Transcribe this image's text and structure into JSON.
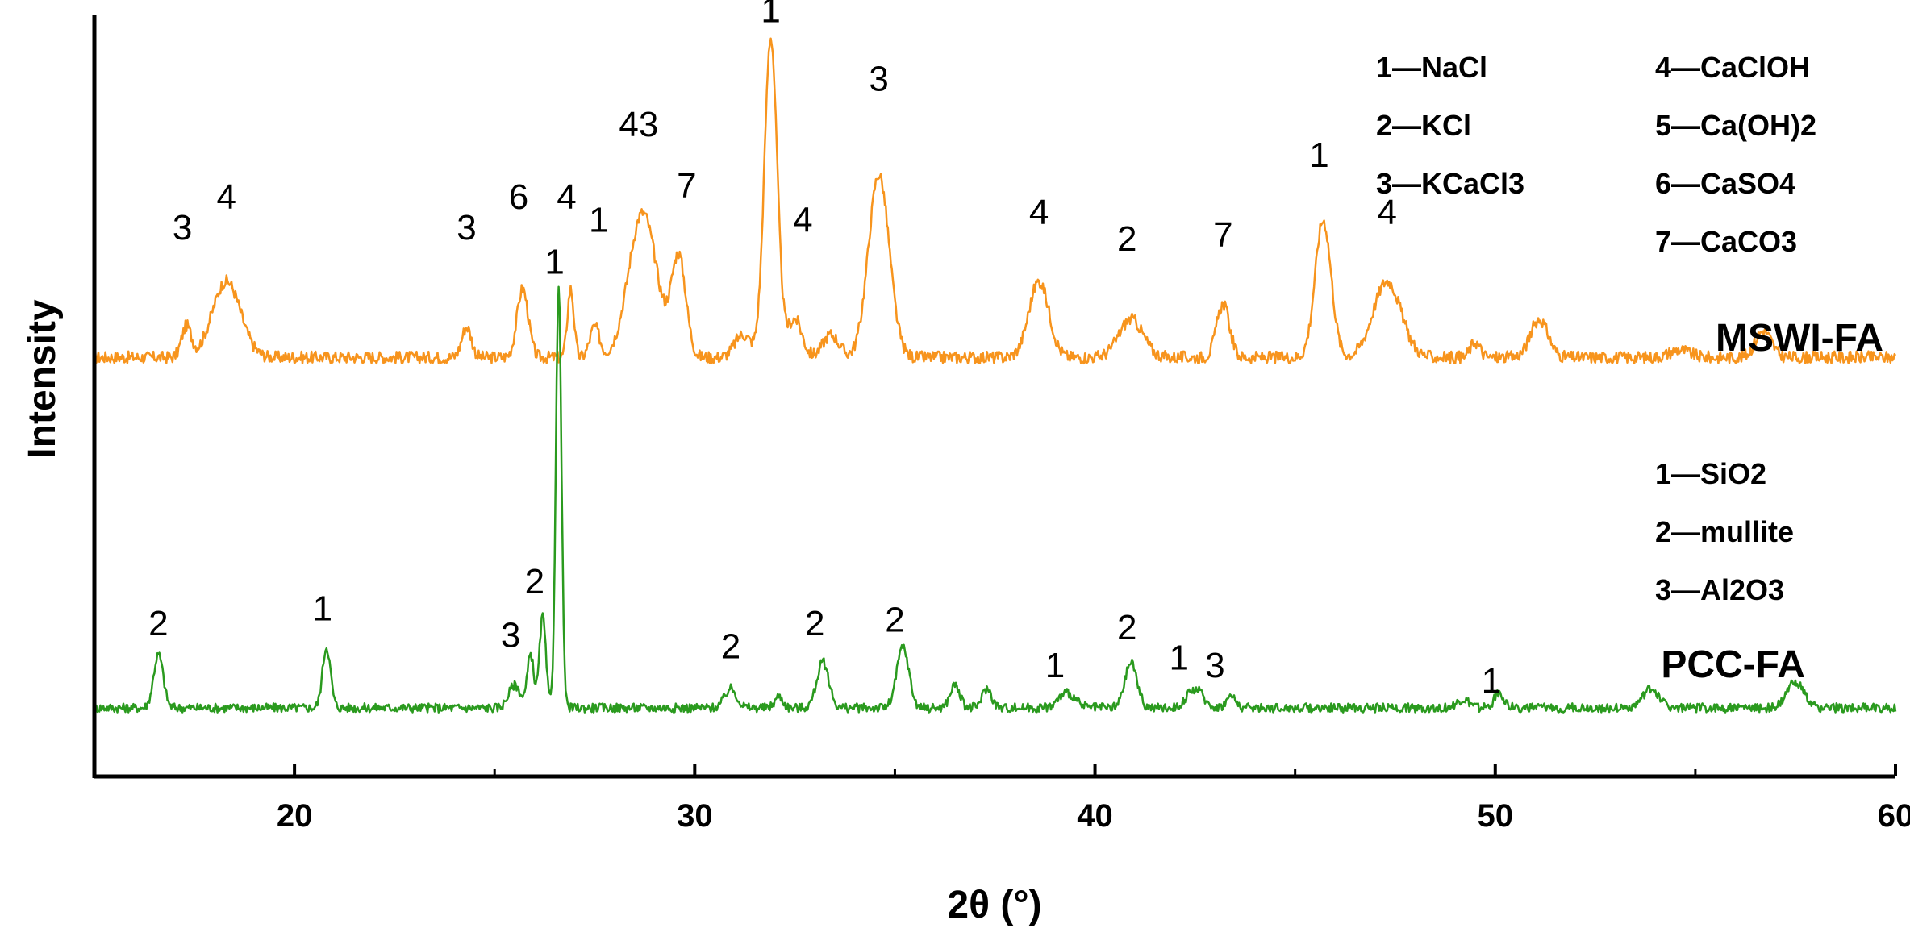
{
  "chart_data": {
    "type": "line",
    "xlabel": "2θ (°)",
    "ylabel": "Intensity",
    "xlim": [
      15,
      60
    ],
    "ylim": [
      0,
      100
    ],
    "x_ticks": [
      20,
      30,
      40,
      50,
      60
    ],
    "x_tick_labels": [
      "20",
      "30",
      "40",
      "50",
      "60"
    ],
    "grid": false,
    "series": [
      {
        "name": "MSWI-FA",
        "color": "#f7941d",
        "baseline": 55,
        "noise": 0.8,
        "peaks": [
          {
            "x": 17.3,
            "h": 4,
            "w": 0.12
          },
          {
            "x": 18.3,
            "h": 10,
            "w": 0.35
          },
          {
            "x": 24.3,
            "h": 4,
            "w": 0.12
          },
          {
            "x": 25.7,
            "h": 9,
            "w": 0.14
          },
          {
            "x": 26.9,
            "h": 9,
            "w": 0.08
          },
          {
            "x": 27.5,
            "h": 4,
            "w": 0.12
          },
          {
            "x": 28.7,
            "h": 19,
            "w": 0.35
          },
          {
            "x": 29.6,
            "h": 13,
            "w": 0.18
          },
          {
            "x": 31.2,
            "h": 3,
            "w": 0.2
          },
          {
            "x": 31.9,
            "h": 42,
            "w": 0.16
          },
          {
            "x": 32.5,
            "h": 5,
            "w": 0.18
          },
          {
            "x": 33.4,
            "h": 3,
            "w": 0.2
          },
          {
            "x": 34.6,
            "h": 24,
            "w": 0.26
          },
          {
            "x": 38.6,
            "h": 10,
            "w": 0.25
          },
          {
            "x": 40.9,
            "h": 5,
            "w": 0.3
          },
          {
            "x": 43.2,
            "h": 7,
            "w": 0.16
          },
          {
            "x": 45.7,
            "h": 18,
            "w": 0.2
          },
          {
            "x": 47.3,
            "h": 10,
            "w": 0.35
          },
          {
            "x": 49.5,
            "h": 2,
            "w": 0.12
          },
          {
            "x": 51.1,
            "h": 5,
            "w": 0.22
          },
          {
            "x": 54.6,
            "h": 1,
            "w": 0.25
          },
          {
            "x": 56.7,
            "h": 3.5,
            "w": 0.2
          }
        ]
      },
      {
        "name": "PCC-FA",
        "color": "#2a9a1e",
        "baseline": 9,
        "noise": 0.6,
        "peaks": [
          {
            "x": 16.6,
            "h": 7,
            "w": 0.12
          },
          {
            "x": 20.8,
            "h": 8,
            "w": 0.1
          },
          {
            "x": 25.5,
            "h": 3,
            "w": 0.15
          },
          {
            "x": 25.9,
            "h": 7,
            "w": 0.08
          },
          {
            "x": 26.2,
            "h": 12,
            "w": 0.08
          },
          {
            "x": 26.6,
            "h": 55,
            "w": 0.07
          },
          {
            "x": 30.9,
            "h": 2.5,
            "w": 0.15
          },
          {
            "x": 32.1,
            "h": 1.5,
            "w": 0.1
          },
          {
            "x": 33.2,
            "h": 6,
            "w": 0.15
          },
          {
            "x": 35.2,
            "h": 8,
            "w": 0.15
          },
          {
            "x": 36.5,
            "h": 3,
            "w": 0.12
          },
          {
            "x": 37.3,
            "h": 2.5,
            "w": 0.12
          },
          {
            "x": 39.3,
            "h": 2,
            "w": 0.2
          },
          {
            "x": 40.9,
            "h": 6,
            "w": 0.15
          },
          {
            "x": 42.5,
            "h": 2.5,
            "w": 0.2
          },
          {
            "x": 43.4,
            "h": 1.5,
            "w": 0.12
          },
          {
            "x": 49.2,
            "h": 1,
            "w": 0.15
          },
          {
            "x": 50.1,
            "h": 2,
            "w": 0.12
          },
          {
            "x": 53.9,
            "h": 2.5,
            "w": 0.2
          },
          {
            "x": 57.5,
            "h": 3.5,
            "w": 0.2
          }
        ]
      }
    ],
    "peak_labels": [
      {
        "series": "MSWI-FA",
        "x": 17.2,
        "y": 70.5,
        "text": "3"
      },
      {
        "series": "MSWI-FA",
        "x": 18.3,
        "y": 74.5,
        "text": "4"
      },
      {
        "series": "MSWI-FA",
        "x": 24.3,
        "y": 70.5,
        "text": "3"
      },
      {
        "series": "MSWI-FA",
        "x": 25.6,
        "y": 74.5,
        "text": "6"
      },
      {
        "series": "MSWI-FA",
        "x": 26.8,
        "y": 74.5,
        "text": "4"
      },
      {
        "series": "MSWI-FA",
        "x": 27.6,
        "y": 71.5,
        "text": "1"
      },
      {
        "series": "MSWI-FA",
        "x": 28.6,
        "y": 84,
        "text": "43"
      },
      {
        "series": "MSWI-FA",
        "x": 29.8,
        "y": 76,
        "text": "7"
      },
      {
        "series": "MSWI-FA",
        "x": 31.9,
        "y": 99,
        "text": "1"
      },
      {
        "series": "MSWI-FA",
        "x": 32.7,
        "y": 71.5,
        "text": "4"
      },
      {
        "series": "MSWI-FA",
        "x": 34.6,
        "y": 90,
        "text": "3"
      },
      {
        "series": "MSWI-FA",
        "x": 38.6,
        "y": 72.5,
        "text": "4"
      },
      {
        "series": "MSWI-FA",
        "x": 40.8,
        "y": 69,
        "text": "2"
      },
      {
        "series": "MSWI-FA",
        "x": 43.2,
        "y": 69.5,
        "text": "7"
      },
      {
        "series": "MSWI-FA",
        "x": 45.6,
        "y": 80,
        "text": "1"
      },
      {
        "series": "MSWI-FA",
        "x": 47.3,
        "y": 72.5,
        "text": "4"
      },
      {
        "series": "PCC-FA",
        "x": 16.6,
        "y": 18.5,
        "text": "2"
      },
      {
        "series": "PCC-FA",
        "x": 20.7,
        "y": 20.5,
        "text": "1"
      },
      {
        "series": "PCC-FA",
        "x": 25.4,
        "y": 17,
        "text": "3"
      },
      {
        "series": "PCC-FA",
        "x": 26.0,
        "y": 24,
        "text": "2"
      },
      {
        "series": "PCC-FA",
        "x": 26.5,
        "y": 66,
        "text": "1"
      },
      {
        "series": "PCC-FA",
        "x": 30.9,
        "y": 15.5,
        "text": "2"
      },
      {
        "series": "PCC-FA",
        "x": 33.0,
        "y": 18.5,
        "text": "2"
      },
      {
        "series": "PCC-FA",
        "x": 35.0,
        "y": 19,
        "text": "2"
      },
      {
        "series": "PCC-FA",
        "x": 39.0,
        "y": 13,
        "text": "1"
      },
      {
        "series": "PCC-FA",
        "x": 40.8,
        "y": 18,
        "text": "2"
      },
      {
        "series": "PCC-FA",
        "x": 42.1,
        "y": 14,
        "text": "1"
      },
      {
        "series": "PCC-FA",
        "x": 43.0,
        "y": 13,
        "text": "3"
      },
      {
        "series": "PCC-FA",
        "x": 49.9,
        "y": 11,
        "text": "1"
      }
    ],
    "legends": {
      "mswi": [
        "1—NaCl",
        "4—CaClOH",
        "2—KCl",
        "5—Ca(OH)2",
        "3—KCaCl3",
        "6—CaSO4",
        "7—CaCO3"
      ],
      "pcc": [
        "1—SiO2",
        "2—mullite",
        "3—Al2O3"
      ]
    }
  }
}
